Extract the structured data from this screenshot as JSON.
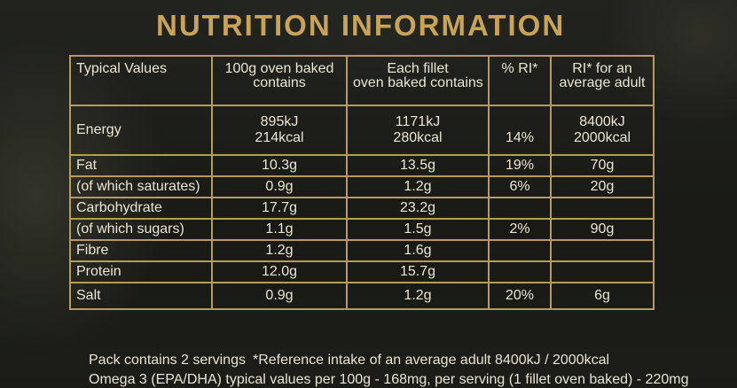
{
  "title": "NUTRITION INFORMATION",
  "columns": {
    "c0": "Typical Values",
    "c1_l1": "100g oven baked",
    "c1_l2": "contains",
    "c2_l1": "Each fillet",
    "c2_l2": "oven baked contains",
    "c3": "% RI*",
    "c4_l1": "RI* for an",
    "c4_l2": "average adult"
  },
  "rows": [
    {
      "label": "Energy",
      "per100_l1": "895kJ",
      "per100_l2": "214kcal",
      "fillet_l1": "1171kJ",
      "fillet_l2": "280kcal",
      "ri": "14%",
      "ri_adult_l1": "8400kJ",
      "ri_adult_l2": "2000kcal"
    },
    {
      "label": "Fat",
      "per100": "10.3g",
      "fillet": "13.5g",
      "ri": "19%",
      "ri_adult": "70g"
    },
    {
      "label": "(of which saturates)",
      "per100": "0.9g",
      "fillet": "1.2g",
      "ri": "6%",
      "ri_adult": "20g"
    },
    {
      "label": "Carbohydrate",
      "per100": "17.7g",
      "fillet": "23.2g",
      "ri": "",
      "ri_adult": ""
    },
    {
      "label": "(of which sugars)",
      "per100": "1.1g",
      "fillet": "1.5g",
      "ri": "2%",
      "ri_adult": "90g"
    },
    {
      "label": "Fibre",
      "per100": "1.2g",
      "fillet": "1.6g",
      "ri": "",
      "ri_adult": ""
    },
    {
      "label": "Protein",
      "per100": "12.0g",
      "fillet": "15.7g",
      "ri": "",
      "ri_adult": ""
    },
    {
      "label": "Salt",
      "per100": "0.9g",
      "fillet": "1.2g",
      "ri": "20%",
      "ri_adult": "6g"
    }
  ],
  "footer": {
    "servings": "Pack contains 2 servings",
    "reference": "*Reference intake of an average adult 8400kJ / 2000kcal",
    "omega_partial": "Omega 3 (EPA/DHA) typical values per 100g - 168mg, per serving (1 fillet oven baked) - 220mg"
  },
  "colors": {
    "accent_gold": "#c9a456",
    "border_gold": "#b79b5a",
    "background": "#1b1c18",
    "text": "#ebe6d4"
  }
}
